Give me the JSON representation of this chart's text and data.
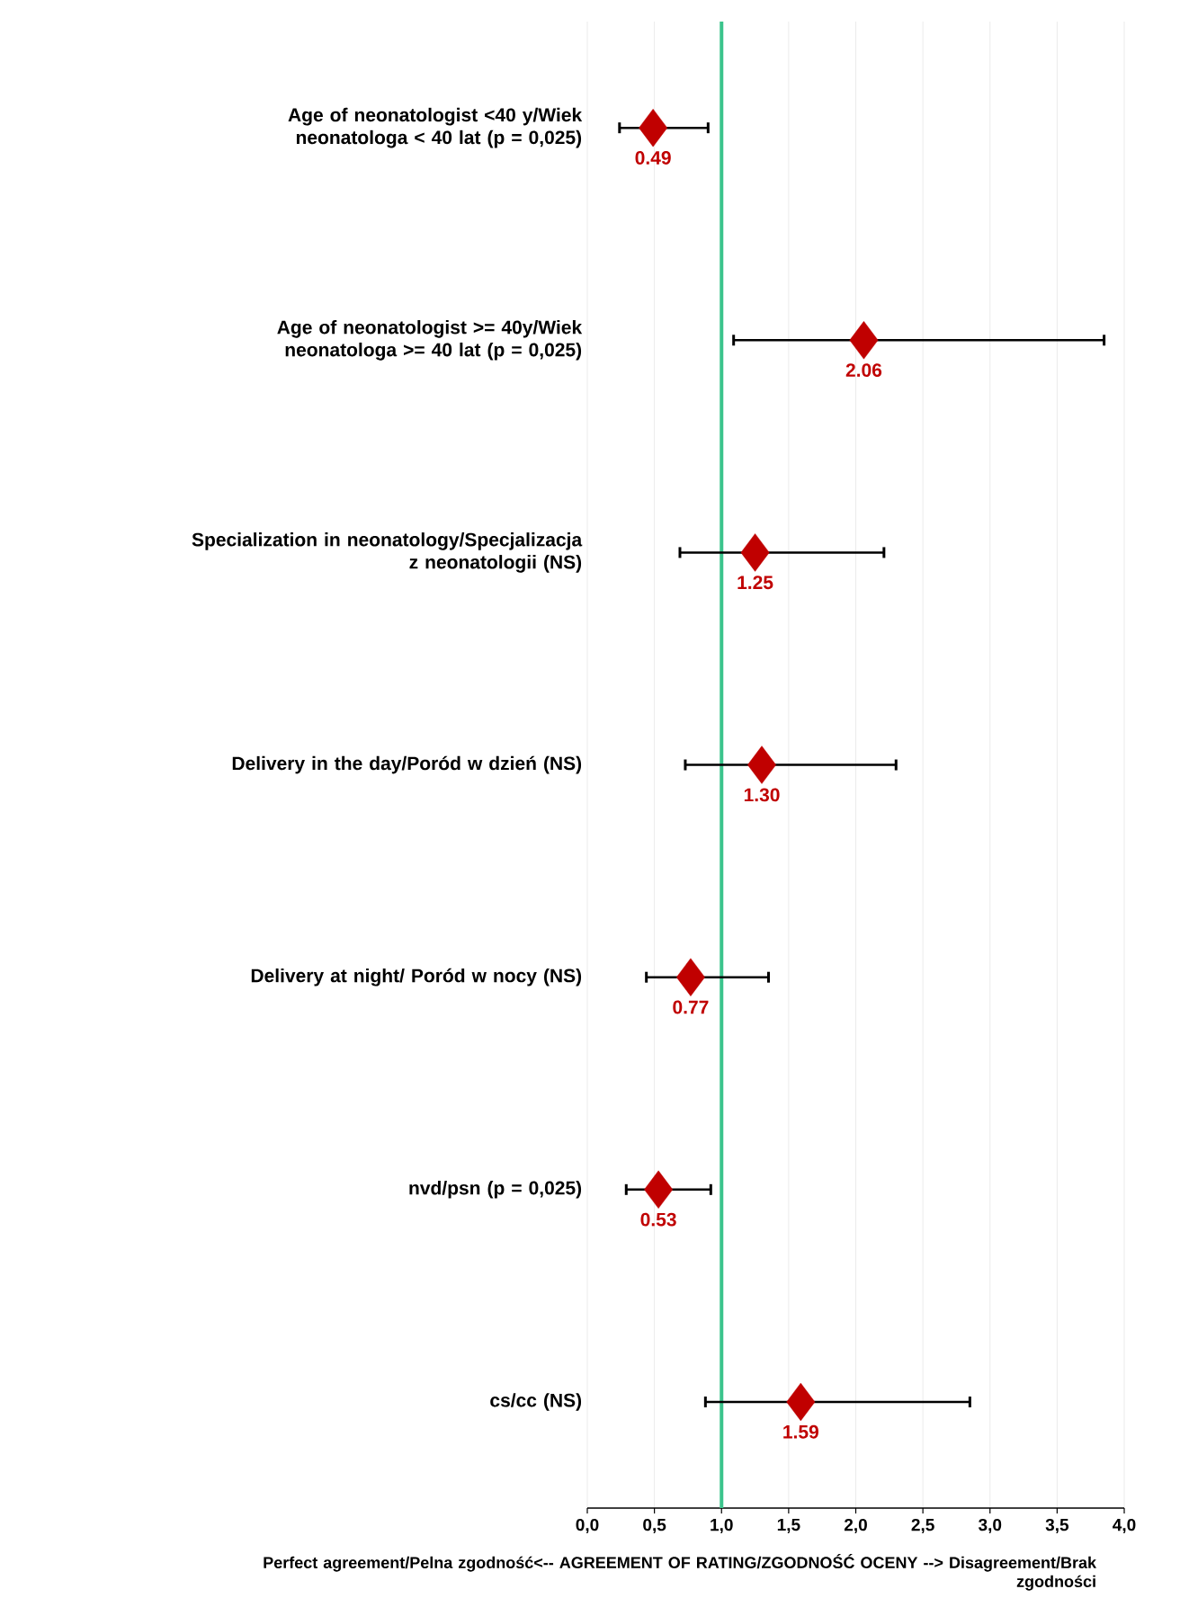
{
  "chart_data": {
    "type": "scatter",
    "xlabel": "Perfect agreement/Pelna zgodność<-- AGREEMENT OF RATING/ZGODNOŚĆ  OCENY --> Disagreement/Brak zgodności",
    "categories": [
      "Age of neonatologist <40 y/Wiek neonatologa < 40 lat (p = 0,025)",
      "Age of neonatologist >= 40y/Wiek neonatologa >= 40 lat (p = 0,025)",
      "Specialization in neonatology/Specjalizacja z neonatologii (NS)",
      "Delivery in the day/Poród w dzień (NS)",
      "Delivery at night/ Poród w nocy (NS)",
      "nvd/psn (p = 0,025)",
      "cs/cc (NS)"
    ],
    "orientation": "horizontal",
    "values": [
      0.49,
      2.06,
      1.25,
      1.3,
      0.77,
      0.53,
      1.59
    ],
    "errors": [
      [
        0.24,
        0.9
      ],
      [
        1.09,
        3.85
      ],
      [
        0.69,
        2.21
      ],
      [
        0.73,
        2.3
      ],
      [
        0.44,
        1.35
      ],
      [
        0.29,
        0.92
      ],
      [
        0.88,
        2.85
      ]
    ],
    "value_labels": [
      "0.49",
      "2.06",
      "1.25",
      "1.30",
      "0.77",
      "0.53",
      "1.59"
    ],
    "color": "#c00000",
    "marker": "diamond",
    "xlim": [
      0,
      4
    ],
    "xticks": [
      {
        "value": 0,
        "label": "0,0"
      },
      {
        "value": 0.5,
        "label": "0,5"
      },
      {
        "value": 1,
        "label": "1,0"
      },
      {
        "value": 1.5,
        "label": "1,5"
      },
      {
        "value": 2,
        "label": "2,0"
      },
      {
        "value": 2.5,
        "label": "2,5"
      },
      {
        "value": 3,
        "label": "3,0"
      },
      {
        "value": 3.5,
        "label": "3,5"
      },
      {
        "value": 4,
        "label": "4,0"
      }
    ],
    "grid": "x",
    "ref_lines": [
      {
        "axis": "x",
        "value": 1,
        "color": "#3cc48c"
      }
    ]
  }
}
